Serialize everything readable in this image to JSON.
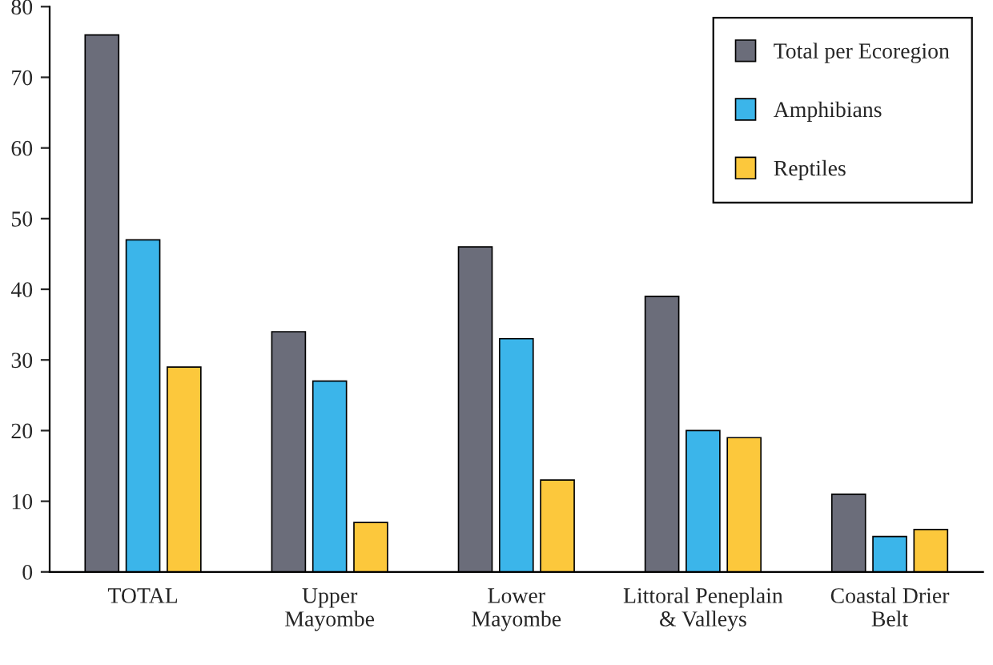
{
  "chart_data": {
    "type": "bar",
    "categories": [
      "TOTAL",
      "Upper\nMayombe",
      "Lower\nMayombe",
      "Littoral Peneplain\n& Valleys",
      "Coastal Drier\nBelt"
    ],
    "series": [
      {
        "name": "Total per Ecoregion",
        "color": "#6b6d7a",
        "values": [
          76,
          34,
          46,
          39,
          11
        ]
      },
      {
        "name": "Amphibians",
        "color": "#3bb5ea",
        "values": [
          47,
          27,
          33,
          20,
          5
        ]
      },
      {
        "name": "Reptiles",
        "color": "#fcc83c",
        "values": [
          29,
          7,
          13,
          19,
          6
        ]
      }
    ],
    "ylim": [
      0,
      80
    ],
    "yticks": [
      0,
      10,
      20,
      30,
      40,
      50,
      60,
      70,
      80
    ],
    "grid": false,
    "legend": "top right"
  }
}
